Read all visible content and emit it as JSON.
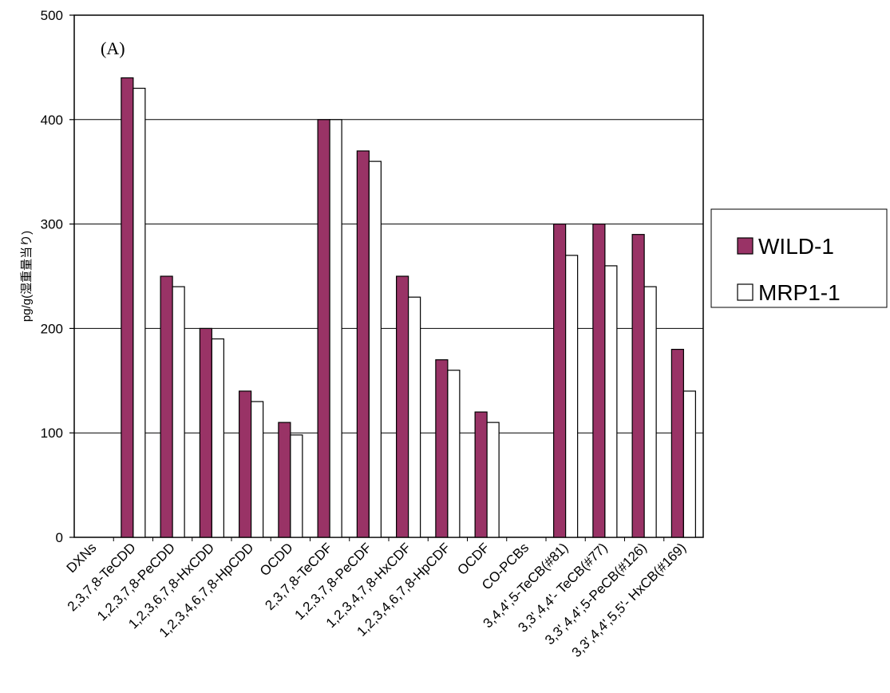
{
  "chart_data": {
    "type": "bar",
    "panel_label": "(A)",
    "ylabel": "pg/g(湿重量当り)",
    "xlabel": "",
    "ylim": [
      0,
      500
    ],
    "yticks": [
      0,
      100,
      200,
      300,
      400,
      500
    ],
    "grid": true,
    "legend_position": "right",
    "categories": [
      "DXNs",
      "2,3,7,8-TeCDD",
      "1,2,3,7,8-PeCDD",
      "1,2,3,6,7,8-HxCDD",
      "1,2,3,4,6,7,8-HpCDD",
      "OCDD",
      "2,3,7,8-TeCDF",
      "1,2,3,7,8-PeCDF",
      "1,2,3,4,7,8-HxCDF",
      "1,2,3,4,6,7,8-HpCDF",
      "OCDF",
      "CO-PCBs",
      "3,4,4',5-TeCB(#81)",
      "3,3',4,4'- TeCB(#77)",
      "3,3',4,4',5-PeCB(#126)",
      "3,3',4,4',5,5'- HxCB(#169)"
    ],
    "series": [
      {
        "name": "WILD-1",
        "color": "#993366",
        "values": [
          null,
          440,
          250,
          200,
          140,
          110,
          400,
          370,
          250,
          170,
          120,
          null,
          300,
          300,
          290,
          180
        ]
      },
      {
        "name": "MRP1-1",
        "color": "#ffffff",
        "values": [
          null,
          430,
          240,
          190,
          130,
          98,
          400,
          360,
          230,
          160,
          110,
          null,
          270,
          260,
          240,
          140
        ]
      }
    ]
  }
}
